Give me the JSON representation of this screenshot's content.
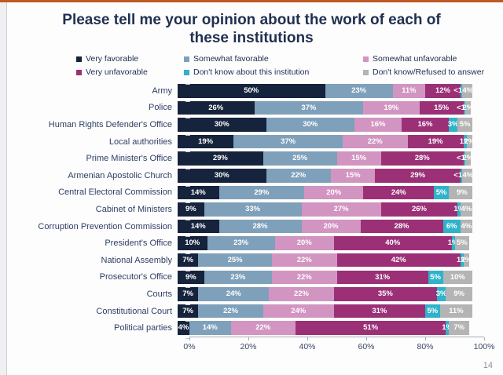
{
  "title": "Please tell me your opinion about the work of each of these institutions",
  "page_number": "14",
  "colors": {
    "very_favorable": "#16233c",
    "somewhat_favorable": "#7fa0ba",
    "somewhat_unfavorable": "#d294c1",
    "very_unfavorable": "#9b3077",
    "dont_know_institution": "#2fb3ca",
    "refused": "#b4b4b4"
  },
  "legend": {
    "items": [
      {
        "label": "Very favorable",
        "color": "#16233c"
      },
      {
        "label": "Somewhat favorable",
        "color": "#7fa0ba"
      },
      {
        "label": "Somewhat unfavorable",
        "color": "#d294c1"
      },
      {
        "label": "Very unfavorable",
        "color": "#9b3077"
      },
      {
        "label": "Don't know about this institution",
        "color": "#2fb3ca"
      },
      {
        "label": "Don't know/Refused to answer",
        "color": "#b4b4b4"
      }
    ]
  },
  "chart_data": {
    "type": "bar",
    "orientation": "horizontal",
    "stacked": true,
    "xlim": [
      0,
      100
    ],
    "x_ticks": [
      "0%",
      "20%",
      "40%",
      "60%",
      "80%",
      "100%"
    ],
    "categories": [
      "Army",
      "Police",
      "Human Rights Defender's Office",
      "Local authorities",
      "Prime Minister's Office",
      "Armenian Apostolic Church",
      "Central Electoral Commission",
      "Cabinet of Ministers",
      "Corruption Prevention Commission",
      "President's Office",
      "National Assembly",
      "Prosecutor's Office",
      "Courts",
      "Constitutional Court",
      "Political parties"
    ],
    "series": [
      {
        "name": "Very favorable",
        "color": "#16233c",
        "values": [
          50,
          26,
          30,
          19,
          29,
          30,
          14,
          9,
          14,
          10,
          7,
          9,
          7,
          7,
          4
        ],
        "labels": [
          "50%",
          "26%",
          "30%",
          "19%",
          "29%",
          "30%",
          "14%",
          "9%",
          "14%",
          "10%",
          "7%",
          "9%",
          "7%",
          "7%",
          "4%"
        ]
      },
      {
        "name": "Somewhat favorable",
        "color": "#7fa0ba",
        "values": [
          23,
          37,
          30,
          37,
          25,
          22,
          29,
          33,
          28,
          23,
          25,
          23,
          24,
          22,
          14
        ],
        "labels": [
          "23%",
          "37%",
          "30%",
          "37%",
          "25%",
          "22%",
          "29%",
          "33%",
          "28%",
          "23%",
          "25%",
          "23%",
          "24%",
          "22%",
          "14%"
        ]
      },
      {
        "name": "Somewhat unfavorable",
        "color": "#d294c1",
        "values": [
          11,
          19,
          16,
          22,
          15,
          15,
          20,
          27,
          20,
          20,
          22,
          22,
          22,
          24,
          22
        ],
        "labels": [
          "11%",
          "19%",
          "16%",
          "22%",
          "15%",
          "15%",
          "20%",
          "27%",
          "20%",
          "20%",
          "22%",
          "22%",
          "22%",
          "24%",
          "22%"
        ]
      },
      {
        "name": "Very unfavorable",
        "color": "#9b3077",
        "values": [
          12,
          15,
          16,
          19,
          28,
          29,
          24,
          26,
          28,
          40,
          42,
          31,
          35,
          31,
          51
        ],
        "labels": [
          "12%",
          "15%",
          "16%",
          "19%",
          "28%",
          "29%",
          "24%",
          "26%",
          "28%",
          "40%",
          "42%",
          "31%",
          "35%",
          "31%",
          "51%"
        ]
      },
      {
        "name": "Don't know about this institution",
        "color": "#2fb3ca",
        "values": [
          0.5,
          0.5,
          3,
          1,
          0.5,
          0.5,
          5,
          1,
          6,
          1,
          1,
          5,
          3,
          5,
          1
        ],
        "labels": [
          "<1%",
          "<1%",
          "3%",
          "1%",
          "<1%",
          "<1%",
          "5%",
          "1%",
          "6%",
          "1%",
          "1%",
          "5%",
          "3%",
          "5%",
          "1%"
        ]
      },
      {
        "name": "Don't know/Refused to answer",
        "color": "#b4b4b4",
        "values": [
          4,
          2,
          5,
          2,
          2,
          4,
          9,
          4,
          4,
          5,
          2,
          10,
          9,
          11,
          7
        ],
        "labels": [
          "4%",
          "2%",
          "5%",
          "2%",
          "2%",
          "4%",
          "9%",
          "4%",
          "4%",
          "5%",
          "2%",
          "10%",
          "9%",
          "11%",
          "7%"
        ]
      }
    ]
  }
}
